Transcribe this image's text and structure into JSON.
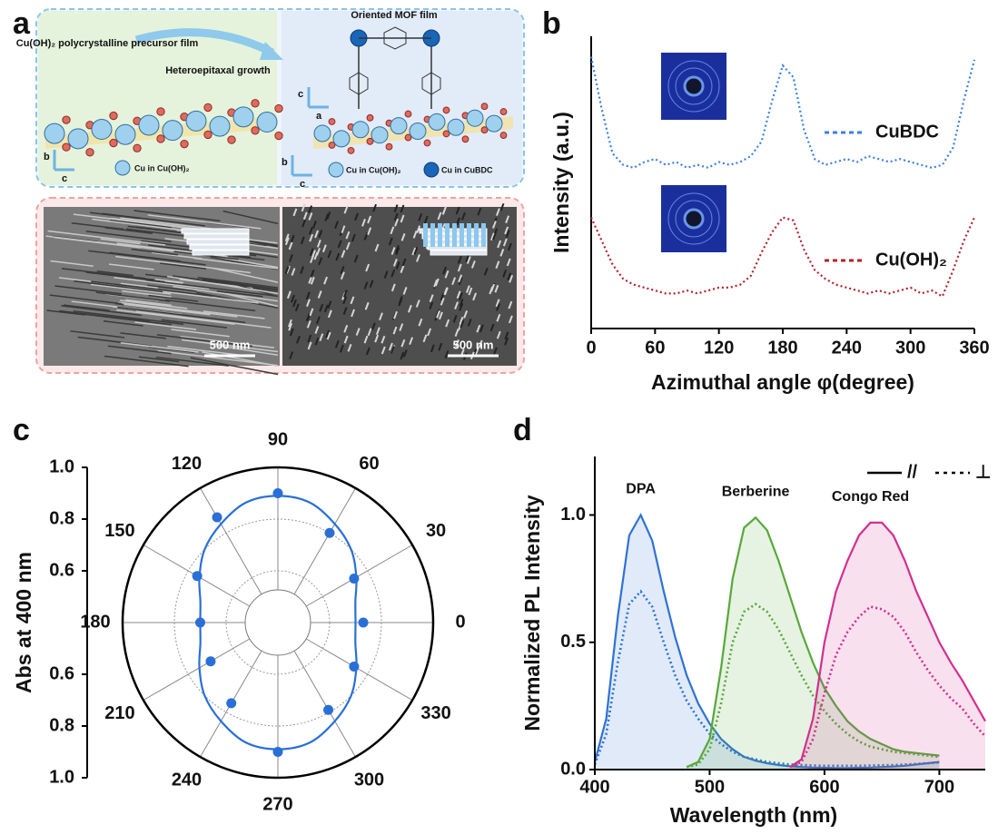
{
  "panel_labels": [
    "a",
    "b",
    "c",
    "d"
  ],
  "schematic": {
    "precursor_label": "Cu(OH)₂ polycrystalline precursor film",
    "growth_label": "Heteroepitaxal growth",
    "mof_label": "Oriented MOF film",
    "axes_left": [
      "b",
      "c"
    ],
    "axes_right": [
      "c",
      "a",
      "b",
      "c"
    ],
    "legend_left": "Cu in Cu(OH)₂",
    "legend_right": [
      "Cu in Cu(OH)₂",
      "Cu in CuBDC"
    ],
    "scale_bars": [
      "500 nm",
      "500 nm"
    ]
  },
  "chart_data": [
    {
      "type": "line",
      "xlabel": "Azimuthal angle φ(degree)",
      "ylabel": "Intensity (a.u.)",
      "line_style": "dotted",
      "x": [
        0,
        10,
        20,
        30,
        40,
        50,
        60,
        70,
        80,
        90,
        100,
        110,
        120,
        130,
        140,
        150,
        160,
        170,
        180,
        190,
        200,
        210,
        220,
        230,
        240,
        250,
        260,
        270,
        280,
        290,
        300,
        310,
        320,
        330,
        340,
        350,
        360
      ],
      "xlim": [
        0,
        360
      ],
      "xticks": [
        0,
        60,
        120,
        180,
        240,
        300,
        360
      ],
      "ylim": [
        0,
        1
      ],
      "series": [
        {
          "name": "CuBDC",
          "color": "#3b7fe0",
          "values": [
            0.93,
            0.75,
            0.6,
            0.56,
            0.55,
            0.57,
            0.58,
            0.56,
            0.57,
            0.55,
            0.56,
            0.55,
            0.57,
            0.56,
            0.57,
            0.59,
            0.64,
            0.78,
            0.9,
            0.86,
            0.68,
            0.58,
            0.56,
            0.57,
            0.58,
            0.57,
            0.59,
            0.58,
            0.57,
            0.58,
            0.57,
            0.56,
            0.55,
            0.56,
            0.62,
            0.78,
            0.92
          ]
        },
        {
          "name": "Cu(OH)₂",
          "color": "#b3202c",
          "values": [
            0.38,
            0.3,
            0.22,
            0.17,
            0.15,
            0.14,
            0.13,
            0.12,
            0.12,
            0.13,
            0.12,
            0.13,
            0.14,
            0.14,
            0.15,
            0.18,
            0.26,
            0.33,
            0.38,
            0.37,
            0.27,
            0.2,
            0.17,
            0.15,
            0.14,
            0.13,
            0.12,
            0.13,
            0.12,
            0.13,
            0.14,
            0.12,
            0.13,
            0.11,
            0.2,
            0.3,
            0.38
          ]
        }
      ]
    },
    {
      "type": "polar",
      "ylabel": "Abs at 400 nm",
      "theta_ticks": [
        0,
        30,
        60,
        90,
        120,
        150,
        180,
        210,
        240,
        270,
        300,
        330
      ],
      "rlim": [
        0.4,
        1
      ],
      "rticks": [
        {
          "value": 1,
          "label": "1.0"
        },
        0.8,
        0.6
      ],
      "series": [
        {
          "mode": "markers",
          "color": "#2a6fd6",
          "theta": [
            0,
            30,
            60,
            90,
            120,
            150,
            180,
            210,
            240,
            270,
            300,
            330
          ],
          "values": [
            0.73,
            0.74,
            0.8,
            0.9,
            0.87,
            0.76,
            0.7,
            0.7,
            0.76,
            0.9,
            0.79,
            0.74
          ]
        },
        {
          "mode": "line",
          "color": "#2a6fd6",
          "theta": [
            0,
            15,
            30,
            45,
            60,
            75,
            90,
            105,
            120,
            135,
            150,
            165,
            180,
            195,
            210,
            225,
            240,
            255,
            270,
            285,
            300,
            315,
            330,
            345
          ],
          "values": [
            0.7,
            0.71,
            0.75,
            0.8,
            0.84,
            0.88,
            0.89,
            0.88,
            0.84,
            0.8,
            0.75,
            0.71,
            0.7,
            0.71,
            0.75,
            0.8,
            0.84,
            0.88,
            0.89,
            0.88,
            0.84,
            0.8,
            0.75,
            0.71
          ]
        }
      ]
    },
    {
      "type": "line",
      "xlabel": "Wavelength (nm)",
      "ylabel": "Normalized PL Intensity",
      "x": [
        400,
        410,
        420,
        430,
        440,
        450,
        460,
        470,
        480,
        490,
        500,
        510,
        520,
        530,
        540,
        550,
        560,
        570,
        580,
        590,
        600,
        610,
        620,
        630,
        640,
        650,
        660,
        670,
        680,
        690,
        700,
        710,
        720,
        730,
        740
      ],
      "xlim": [
        400,
        740
      ],
      "xticks": [
        400,
        500,
        600,
        700
      ],
      "ylim": [
        0,
        1.23
      ],
      "yticks": [
        {
          "value": 0,
          "label": "0.0"
        },
        0.5,
        {
          "value": 1,
          "label": "1.0"
        }
      ],
      "annotations": [
        "DPA",
        "Berberine",
        "Congo Red"
      ],
      "legend_styles": [
        {
          "label": "//",
          "dash": "solid"
        },
        {
          "label": "⊥",
          "dash": "dotted"
        }
      ],
      "series": [
        {
          "color": "#2f72d4",
          "dash": "solid",
          "fill": true,
          "values": [
            0.03,
            0.2,
            0.6,
            0.92,
            1.0,
            0.9,
            0.7,
            0.52,
            0.37,
            0.26,
            0.18,
            0.12,
            0.08,
            0.05,
            0.035,
            0.025,
            0.018,
            0.013,
            0.01,
            0.008,
            0.007,
            0.006,
            0.006,
            0.007,
            0.008,
            0.01,
            0.012,
            0.015,
            0.02,
            0.025,
            0.03,
            null,
            null,
            null,
            null
          ]
        },
        {
          "color": "#2f72d4",
          "dash": "dotted",
          "fill": false,
          "values": [
            0.02,
            0.14,
            0.42,
            0.65,
            0.7,
            0.64,
            0.5,
            0.37,
            0.27,
            0.2,
            0.14,
            0.1,
            0.07,
            0.05,
            0.04,
            0.03,
            0.025,
            0.02,
            0.018,
            0.016,
            0.015,
            0.015,
            0.015,
            0.015,
            0.016,
            0.017,
            0.018,
            0.02,
            0.022,
            0.025,
            0.028,
            null,
            null,
            null,
            null
          ]
        },
        {
          "color": "#58a83a",
          "dash": "solid",
          "fill": true,
          "values": [
            null,
            null,
            null,
            null,
            null,
            null,
            null,
            null,
            0.01,
            0.03,
            0.12,
            0.4,
            0.75,
            0.95,
            0.99,
            0.94,
            0.82,
            0.68,
            0.54,
            0.42,
            0.32,
            0.25,
            0.19,
            0.15,
            0.12,
            0.1,
            0.08,
            0.07,
            0.065,
            0.06,
            0.055,
            null,
            null,
            null,
            null
          ]
        },
        {
          "color": "#58a83a",
          "dash": "dotted",
          "fill": false,
          "values": [
            null,
            null,
            null,
            null,
            null,
            null,
            null,
            null,
            0.01,
            0.02,
            0.08,
            0.26,
            0.5,
            0.62,
            0.65,
            0.62,
            0.55,
            0.46,
            0.37,
            0.29,
            0.23,
            0.18,
            0.14,
            0.11,
            0.09,
            0.08,
            0.07,
            0.065,
            0.06,
            0.055,
            0.05,
            null,
            null,
            null,
            null
          ]
        },
        {
          "color": "#d0308f",
          "dash": "solid",
          "fill": true,
          "values": [
            null,
            null,
            null,
            null,
            null,
            null,
            null,
            null,
            null,
            null,
            null,
            null,
            null,
            null,
            null,
            null,
            null,
            0.01,
            0.04,
            0.2,
            0.5,
            0.7,
            0.82,
            0.92,
            0.97,
            0.97,
            0.92,
            0.82,
            0.7,
            0.6,
            0.5,
            0.42,
            0.35,
            0.27,
            0.19
          ]
        },
        {
          "color": "#d0308f",
          "dash": "dotted",
          "fill": false,
          "values": [
            null,
            null,
            null,
            null,
            null,
            null,
            null,
            null,
            null,
            null,
            null,
            null,
            null,
            null,
            null,
            null,
            null,
            0.01,
            0.03,
            0.12,
            0.3,
            0.45,
            0.54,
            0.6,
            0.64,
            0.63,
            0.6,
            0.54,
            0.46,
            0.39,
            0.33,
            0.28,
            0.24,
            0.18,
            0.13
          ]
        }
      ]
    }
  ]
}
